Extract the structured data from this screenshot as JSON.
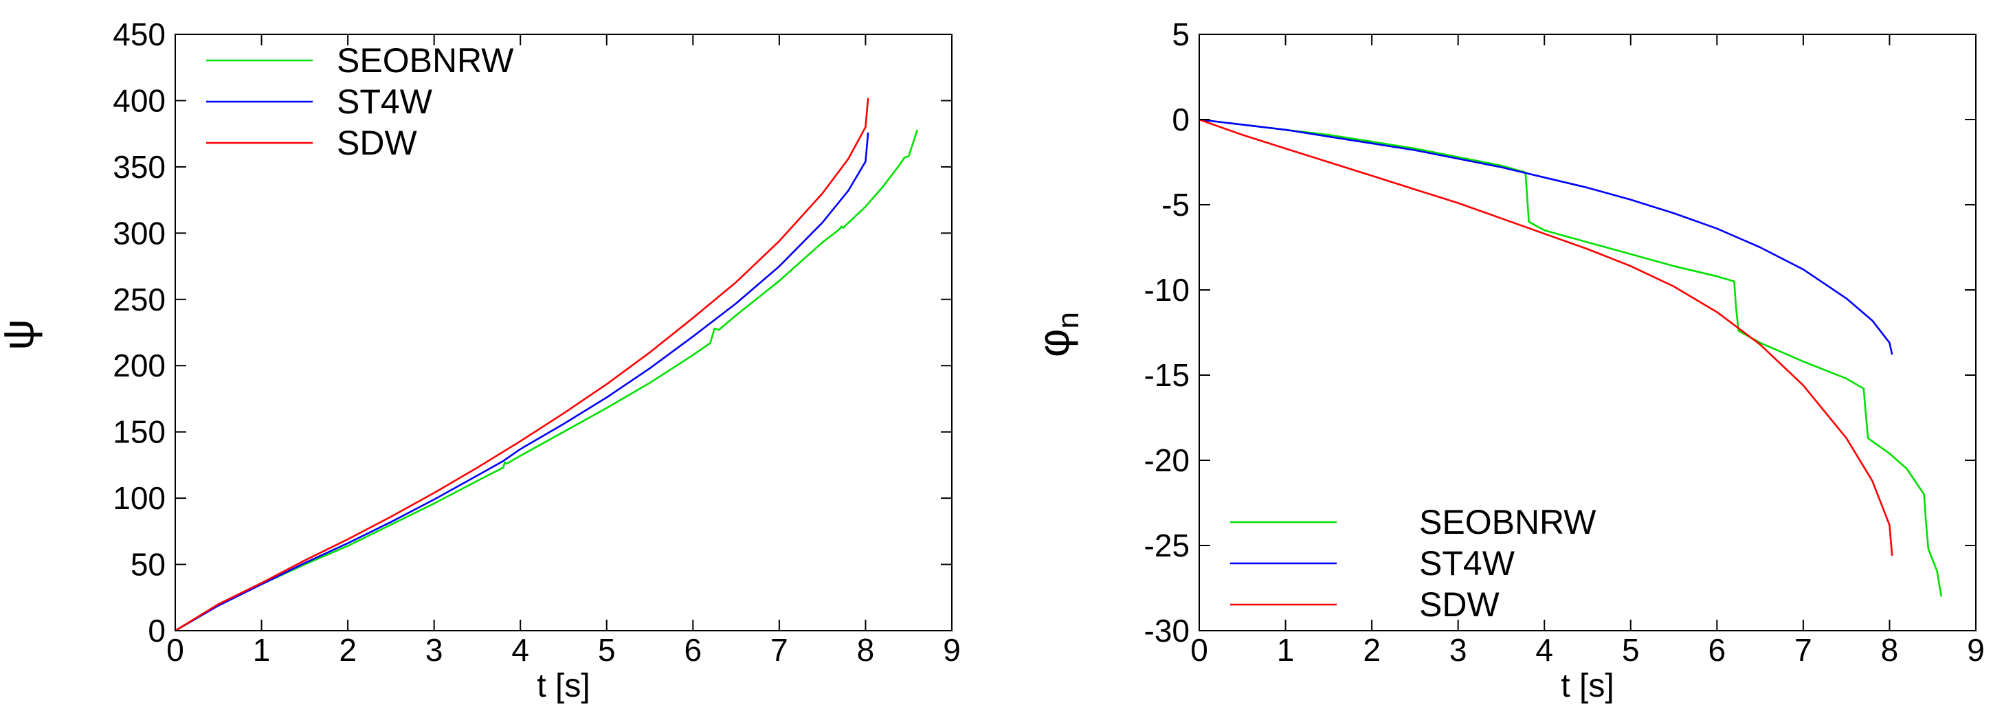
{
  "chart_data": [
    {
      "type": "line",
      "title": "",
      "xlabel": "t [s]",
      "ylabel": "ψ",
      "ylabel_sub": "",
      "xlim": [
        0,
        9
      ],
      "ylim": [
        0,
        450
      ],
      "xticks": [
        0,
        1,
        2,
        3,
        4,
        5,
        6,
        7,
        8,
        9
      ],
      "yticks": [
        0,
        50,
        100,
        150,
        200,
        250,
        300,
        350,
        400,
        450
      ],
      "grid": false,
      "legend_position": "top-left",
      "series": [
        {
          "name": "SEOBNRW",
          "color": "#00e000",
          "points": [
            [
              0,
              0
            ],
            [
              0.5,
              19
            ],
            [
              1,
              35
            ],
            [
              1.5,
              50
            ],
            [
              2,
              64
            ],
            [
              2.5,
              80
            ],
            [
              3,
              96
            ],
            [
              3.5,
              113
            ],
            [
              3.8,
              123
            ],
            [
              3.82,
              127
            ],
            [
              3.84,
              126
            ],
            [
              4,
              132
            ],
            [
              4.5,
              150
            ],
            [
              5,
              168
            ],
            [
              5.5,
              187
            ],
            [
              6,
              208
            ],
            [
              6.2,
              217
            ],
            [
              6.25,
              228
            ],
            [
              6.3,
              227
            ],
            [
              6.5,
              238
            ],
            [
              7,
              264
            ],
            [
              7.5,
              293
            ],
            [
              7.7,
              303
            ],
            [
              7.72,
              305
            ],
            [
              7.74,
              304
            ],
            [
              8,
              320
            ],
            [
              8.2,
              335
            ],
            [
              8.4,
              352
            ],
            [
              8.45,
              357
            ],
            [
              8.5,
              358
            ],
            [
              8.6,
              378
            ]
          ]
        },
        {
          "name": "ST4W",
          "color": "#0000ff",
          "points": [
            [
              0,
              0
            ],
            [
              0.5,
              19
            ],
            [
              1,
              35
            ],
            [
              1.5,
              51
            ],
            [
              2,
              66
            ],
            [
              2.5,
              82
            ],
            [
              3,
              99
            ],
            [
              3.5,
              117
            ],
            [
              3.8,
              128
            ],
            [
              4,
              137
            ],
            [
              4.5,
              156
            ],
            [
              5,
              176
            ],
            [
              5.5,
              198
            ],
            [
              6,
              222
            ],
            [
              6.5,
              247
            ],
            [
              7,
              275
            ],
            [
              7.5,
              308
            ],
            [
              7.8,
              332
            ],
            [
              8,
              354
            ],
            [
              8.03,
              376
            ]
          ]
        },
        {
          "name": "SDW",
          "color": "#ff0000",
          "points": [
            [
              0,
              0
            ],
            [
              0.5,
              20
            ],
            [
              1,
              36
            ],
            [
              1.5,
              53
            ],
            [
              2,
              69
            ],
            [
              2.5,
              86
            ],
            [
              3,
              104
            ],
            [
              3.5,
              123
            ],
            [
              4,
              143
            ],
            [
              4.5,
              164
            ],
            [
              5,
              186
            ],
            [
              5.5,
              210
            ],
            [
              6,
              236
            ],
            [
              6.5,
              263
            ],
            [
              7,
              294
            ],
            [
              7.5,
              330
            ],
            [
              7.8,
              356
            ],
            [
              8,
              380
            ],
            [
              8.03,
              402
            ]
          ]
        }
      ]
    },
    {
      "type": "line",
      "title": "",
      "xlabel": "t [s]",
      "ylabel": "φ",
      "ylabel_sub": "n",
      "xlim": [
        0,
        9
      ],
      "ylim": [
        -30,
        5
      ],
      "xticks": [
        0,
        1,
        2,
        3,
        4,
        5,
        6,
        7,
        8,
        9
      ],
      "yticks": [
        -30,
        -25,
        -20,
        -15,
        -10,
        -5,
        0,
        5
      ],
      "grid": false,
      "legend_position": "bottom-left",
      "series": [
        {
          "name": "SEOBNRW",
          "color": "#00e000",
          "points": [
            [
              0,
              0
            ],
            [
              0.5,
              -0.3
            ],
            [
              1,
              -0.6
            ],
            [
              1.5,
              -0.9
            ],
            [
              2,
              -1.3
            ],
            [
              2.5,
              -1.7
            ],
            [
              3,
              -2.2
            ],
            [
              3.5,
              -2.7
            ],
            [
              3.78,
              -3.1
            ],
            [
              3.8,
              -4.5
            ],
            [
              3.82,
              -6.0
            ],
            [
              4,
              -6.5
            ],
            [
              4.5,
              -7.2
            ],
            [
              5,
              -7.9
            ],
            [
              5.5,
              -8.6
            ],
            [
              6,
              -9.2
            ],
            [
              6.2,
              -9.5
            ],
            [
              6.22,
              -11
            ],
            [
              6.25,
              -12.4
            ],
            [
              6.5,
              -13.1
            ],
            [
              7,
              -14.2
            ],
            [
              7.5,
              -15.2
            ],
            [
              7.7,
              -15.8
            ],
            [
              7.72,
              -17
            ],
            [
              7.75,
              -18.7
            ],
            [
              8,
              -19.6
            ],
            [
              8.2,
              -20.5
            ],
            [
              8.4,
              -22
            ],
            [
              8.42,
              -23.5
            ],
            [
              8.45,
              -25.2
            ],
            [
              8.55,
              -26.5
            ],
            [
              8.6,
              -28
            ]
          ]
        },
        {
          "name": "ST4W",
          "color": "#0000ff",
          "points": [
            [
              0,
              0
            ],
            [
              0.5,
              -0.3
            ],
            [
              1,
              -0.6
            ],
            [
              1.5,
              -1.0
            ],
            [
              2,
              -1.4
            ],
            [
              2.5,
              -1.8
            ],
            [
              3,
              -2.3
            ],
            [
              3.5,
              -2.8
            ],
            [
              4,
              -3.4
            ],
            [
              4.5,
              -4.0
            ],
            [
              5,
              -4.7
            ],
            [
              5.5,
              -5.5
            ],
            [
              6,
              -6.4
            ],
            [
              6.5,
              -7.5
            ],
            [
              7,
              -8.8
            ],
            [
              7.5,
              -10.5
            ],
            [
              7.8,
              -11.8
            ],
            [
              8,
              -13.1
            ],
            [
              8.03,
              -13.8
            ]
          ]
        },
        {
          "name": "SDW",
          "color": "#ff0000",
          "points": [
            [
              0,
              0
            ],
            [
              0.5,
              -0.9
            ],
            [
              1,
              -1.7
            ],
            [
              1.5,
              -2.5
            ],
            [
              2,
              -3.3
            ],
            [
              2.5,
              -4.1
            ],
            [
              3,
              -4.9
            ],
            [
              3.5,
              -5.8
            ],
            [
              4,
              -6.7
            ],
            [
              4.5,
              -7.6
            ],
            [
              5,
              -8.6
            ],
            [
              5.5,
              -9.8
            ],
            [
              6,
              -11.3
            ],
            [
              6.5,
              -13.2
            ],
            [
              7,
              -15.6
            ],
            [
              7.5,
              -18.7
            ],
            [
              7.8,
              -21.2
            ],
            [
              8,
              -23.8
            ],
            [
              8.03,
              -25.6
            ]
          ]
        }
      ]
    }
  ]
}
